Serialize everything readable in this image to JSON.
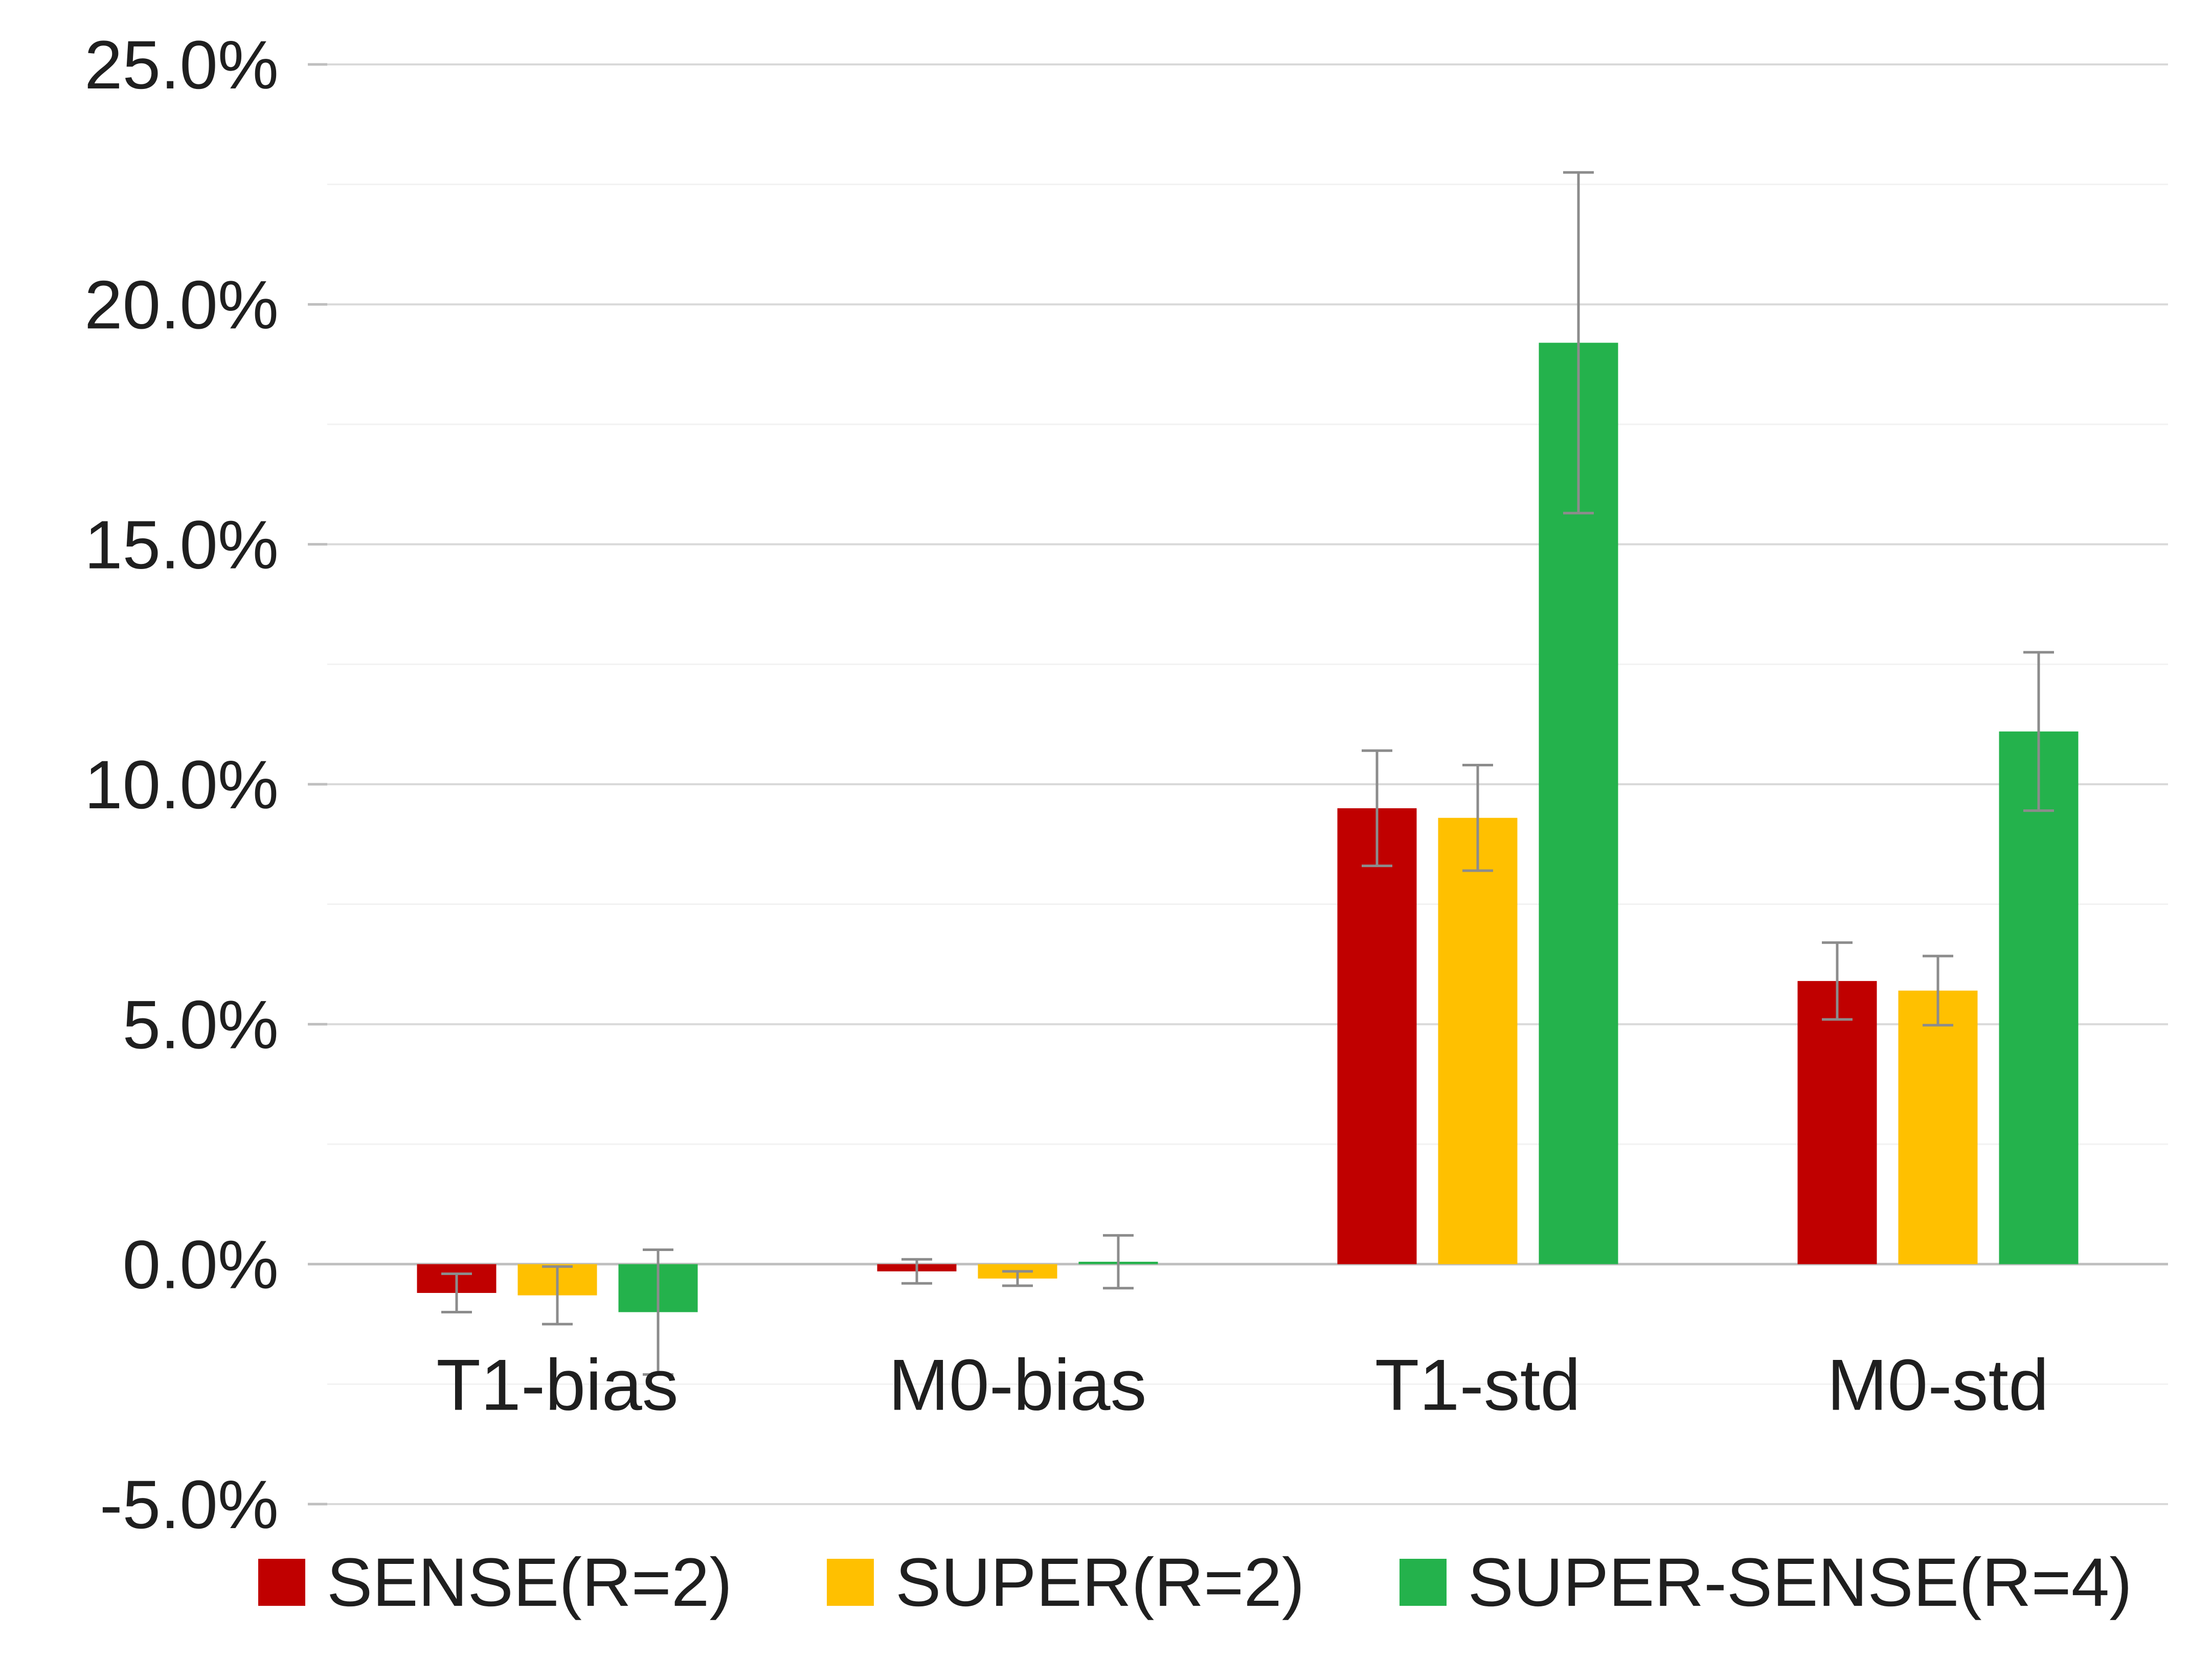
{
  "chart_data": {
    "type": "bar",
    "title": "",
    "xlabel": "",
    "ylabel": "",
    "categories": [
      "T1-bias",
      "M0-bias",
      "T1-std",
      "M0-std"
    ],
    "series": [
      {
        "name": "SENSE(R=2)",
        "color": "#C00000",
        "values": [
          -0.6,
          -0.15,
          9.5,
          5.9
        ],
        "errors": [
          0.4,
          0.25,
          1.2,
          0.8
        ]
      },
      {
        "name": "SUPER(R=2)",
        "color": "#FFC000",
        "values": [
          -0.65,
          -0.3,
          9.3,
          5.7
        ],
        "errors": [
          0.6,
          0.15,
          1.1,
          0.72
        ]
      },
      {
        "name": "SUPER-SENSE(R=4)",
        "color": "#24B24C",
        "values": [
          -1.0,
          0.05,
          19.2,
          11.1
        ],
        "errors": [
          1.3,
          0.55,
          3.55,
          1.65
        ]
      }
    ],
    "ylim": [
      -5,
      25
    ],
    "ytick_step": 5,
    "ytick_labels": [
      "25.0%",
      "20.0%",
      "15.0%",
      "10.0%",
      "5.0%",
      "0.0%",
      "-5.0%"
    ],
    "minor_grid_step": 2.5,
    "grid": true,
    "legend_position": "bottom",
    "colors": {
      "major_grid": "#D9D9D9",
      "minor_grid": "#F2F2F2",
      "zero_line": "#BFBFBF",
      "tick_mark": "#BFBFBF",
      "error_bar": "#8C8C8C",
      "text": "#1f1f1f"
    }
  },
  "legend": {
    "items": [
      {
        "label": "SENSE(R=2)",
        "color": "#C00000"
      },
      {
        "label": "SUPER(R=2)",
        "color": "#FFC000"
      },
      {
        "label": "SUPER-SENSE(R=4)",
        "color": "#24B24C"
      }
    ]
  }
}
